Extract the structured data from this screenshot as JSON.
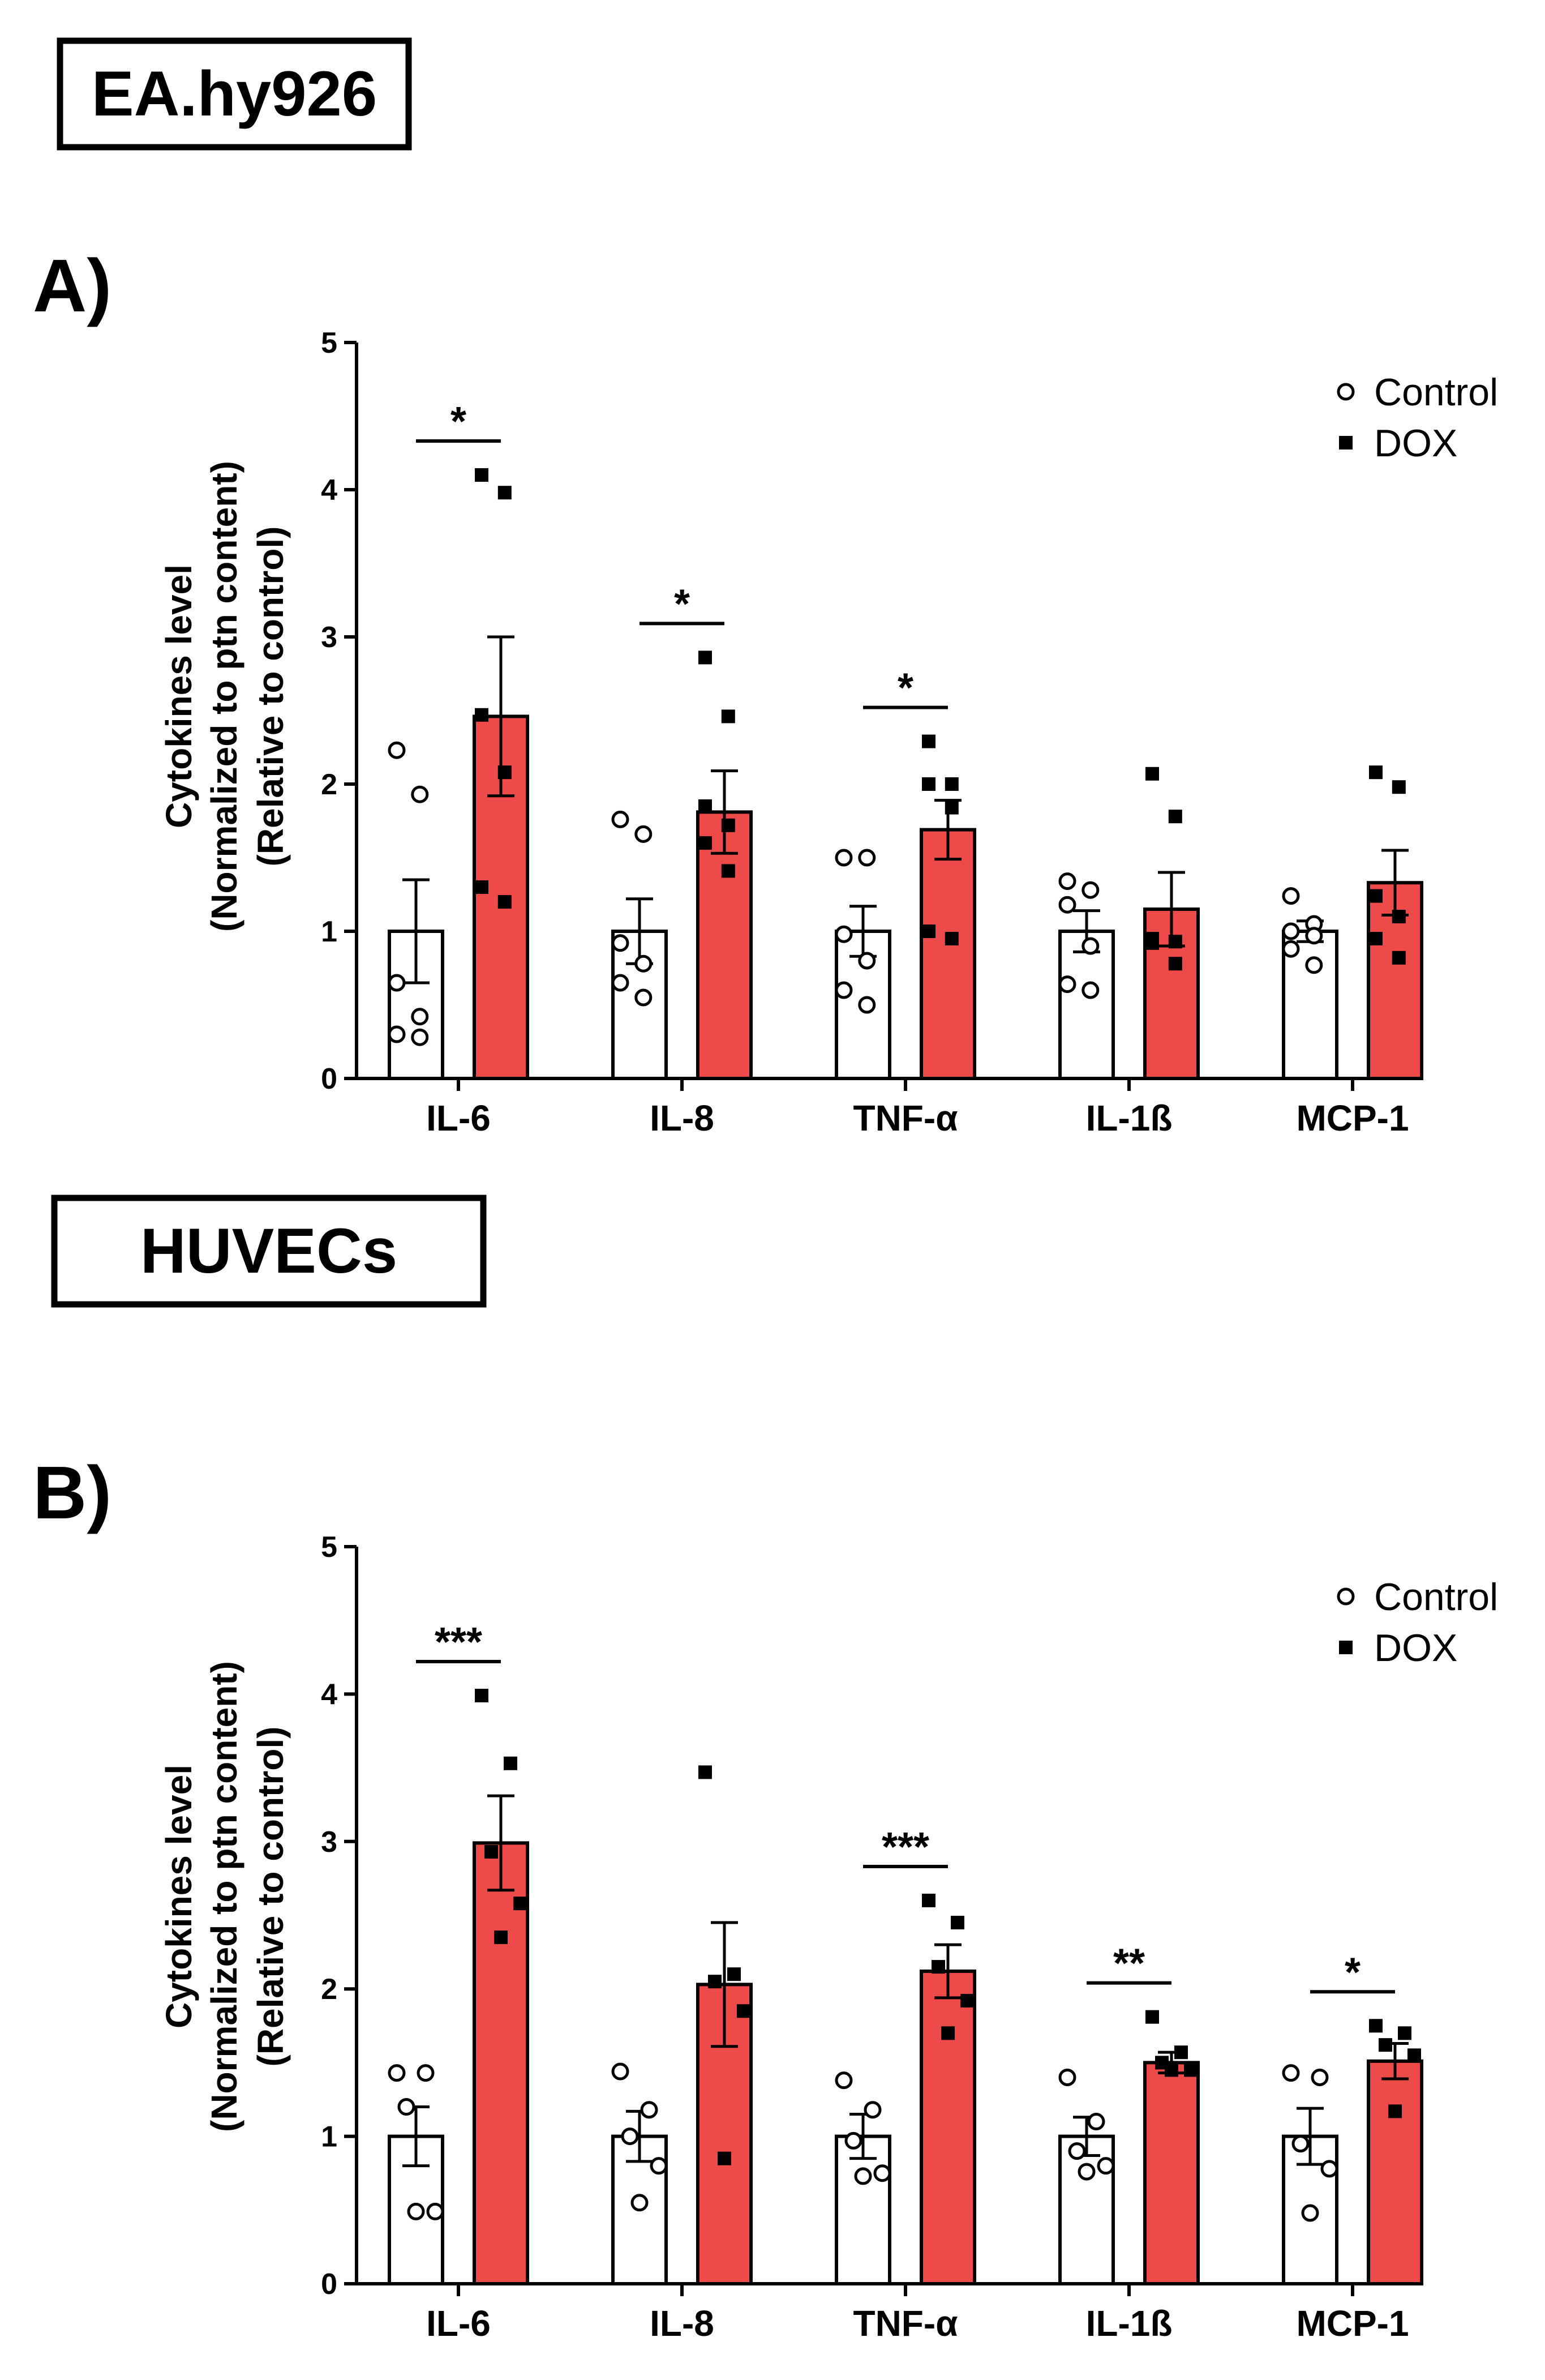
{
  "colors": {
    "control": "#ffffff",
    "dox": "#ef4a4a",
    "stroke": "#000000"
  },
  "chart_data": [
    {
      "type": "bar",
      "cell_line": "EA.hy926",
      "panel_label": "A)",
      "ylabel": [
        "Cytokines level",
        "(Normalized to ptn content)",
        "(Relative to control)"
      ],
      "ylim": [
        0,
        5
      ],
      "yticks": [
        "0",
        "1",
        "2",
        "3",
        "4",
        "5"
      ],
      "categories": [
        "IL-6",
        "IL-8",
        "TNF-α",
        "IL-1ß",
        "MCP-1"
      ],
      "legend": [
        "Control",
        "DOX"
      ],
      "series": [
        {
          "name": "Control",
          "values": [
            1.0,
            1.0,
            1.0,
            1.0,
            1.0
          ],
          "sem": [
            0.35,
            0.22,
            0.17,
            0.14,
            0.07
          ],
          "points": [
            [
              2.23,
              1.93,
              0.65,
              0.42,
              0.3,
              0.28
            ],
            [
              1.76,
              1.66,
              0.92,
              0.78,
              0.65,
              0.55
            ],
            [
              1.5,
              1.5,
              0.98,
              0.8,
              0.6,
              0.5
            ],
            [
              1.34,
              1.28,
              1.18,
              0.9,
              0.64,
              0.6
            ],
            [
              1.24,
              1.05,
              1.0,
              0.97,
              0.88,
              0.77
            ]
          ]
        },
        {
          "name": "DOX",
          "values": [
            2.46,
            1.81,
            1.69,
            1.15,
            1.33
          ],
          "sem": [
            0.54,
            0.28,
            0.2,
            0.25,
            0.22
          ],
          "points": [
            [
              4.1,
              3.98,
              2.47,
              2.08,
              1.3,
              1.2
            ],
            [
              2.86,
              2.46,
              1.85,
              1.72,
              1.6,
              1.41
            ],
            [
              2.29,
              2.0,
              2.0,
              1.84,
              1.0,
              0.95
            ],
            [
              2.07,
              1.78,
              0.95,
              0.93,
              0.92,
              0.78
            ],
            [
              2.08,
              1.98,
              1.24,
              1.1,
              0.95,
              0.82
            ]
          ]
        }
      ],
      "significance": [
        "*",
        "*",
        "*",
        "",
        ""
      ]
    },
    {
      "type": "bar",
      "cell_line": "HUVECs",
      "panel_label": "B)",
      "ylabel": [
        "Cytokines level",
        "(Normalized to ptn content)",
        "(Relative to control)"
      ],
      "ylim": [
        0,
        5
      ],
      "yticks": [
        "0",
        "1",
        "2",
        "3",
        "4",
        "5"
      ],
      "categories": [
        "IL-6",
        "IL-8",
        "TNF-α",
        "IL-1ß",
        "MCP-1"
      ],
      "legend": [
        "Control",
        "DOX"
      ],
      "series": [
        {
          "name": "Control",
          "values": [
            1.0,
            1.0,
            1.0,
            1.0,
            1.0
          ],
          "sem": [
            0.2,
            0.17,
            0.15,
            0.13,
            0.19
          ],
          "points": [
            [
              1.43,
              1.43,
              1.2,
              0.49,
              0.49
            ],
            [
              1.44,
              1.18,
              1.0,
              0.8,
              0.55
            ],
            [
              1.38,
              1.18,
              0.97,
              0.75,
              0.73
            ],
            [
              1.4,
              1.1,
              0.9,
              0.8,
              0.76
            ],
            [
              1.43,
              1.4,
              0.95,
              0.78,
              0.48
            ]
          ]
        },
        {
          "name": "DOX",
          "values": [
            2.99,
            2.03,
            2.12,
            1.5,
            1.51
          ],
          "sem": [
            0.32,
            0.42,
            0.18,
            0.07,
            0.12
          ],
          "points": [
            [
              3.99,
              3.53,
              2.93,
              2.58,
              2.35
            ],
            [
              3.47,
              2.1,
              2.05,
              1.85,
              0.85
            ],
            [
              2.6,
              2.45,
              2.15,
              1.92,
              1.7
            ],
            [
              1.81,
              1.57,
              1.5,
              1.45,
              1.45
            ],
            [
              1.75,
              1.7,
              1.62,
              1.55,
              1.17
            ]
          ]
        }
      ],
      "significance": [
        "***",
        "",
        "***",
        "**",
        "*"
      ]
    }
  ]
}
